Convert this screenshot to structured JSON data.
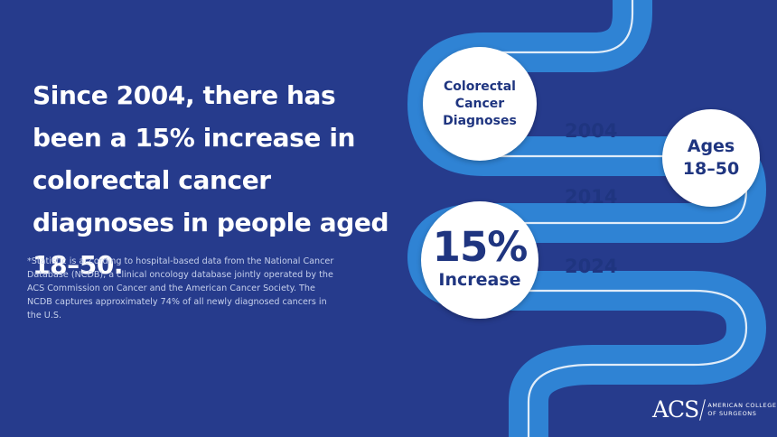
{
  "headline": "Since 2004, there has been a 15% increase in colorectal cancer diagnoses in people aged 18–50.",
  "footnote": "*Statistic is according to hospital-based data from the National Cancer Database (NCDB), a clinical oncology database jointly operated by the ACS Commission on Cancer and the American Cancer Society. The NCDB captures approximately 74% of all newly diagnosed cancers in the U.S.",
  "timeline": {
    "title_lines": [
      "Colorectal",
      "Cancer",
      "Diagnoses"
    ],
    "years": [
      "2004",
      "2014",
      "2024"
    ],
    "ages_lines": [
      "Ages",
      "18–50"
    ],
    "stat_value": "15%",
    "stat_label": "Increase"
  },
  "logo": {
    "mark": "ACS",
    "text_lines": [
      "AMERICAN COLLEGE",
      "OF SURGEONS"
    ]
  },
  "colors": {
    "background": "#263b8c",
    "tube": "#2f83d4",
    "tube_line": "#ffffff",
    "circle_fill": "#ffffff",
    "circle_text": "#1f3580"
  }
}
